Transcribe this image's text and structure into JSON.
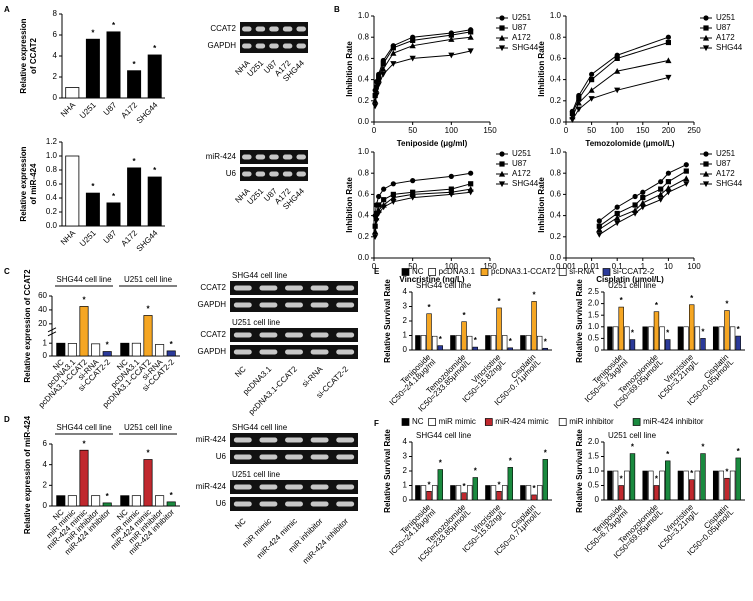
{
  "chart_data": [
    {
      "type": "bar",
      "panel": "A",
      "ylabel": [
        "Relative expression",
        "of CCAT2"
      ],
      "categories": [
        "NHA",
        "U251",
        "U87",
        "A172",
        "SHG44"
      ],
      "values": [
        1,
        5.6,
        6.3,
        2.6,
        4.1
      ],
      "colors": [
        "#ffffff",
        "#000000",
        "#000000",
        "#000000",
        "#000000"
      ],
      "significant": [
        false,
        true,
        true,
        true,
        true
      ],
      "sig_label": "*",
      "ylim": [
        0,
        8
      ],
      "yticks": [
        0,
        2,
        4,
        6,
        8
      ]
    },
    {
      "type": "gel",
      "blocks": [
        {
          "bands": [
            "CCAT2",
            "GAPDH"
          ]
        }
      ],
      "lanes": [
        "NHA",
        "U251",
        "U87",
        "A172",
        "SHG44"
      ]
    },
    {
      "type": "bar",
      "ylabel": [
        "Relative expression",
        "of miR-424"
      ],
      "categories": [
        "NHA",
        "U251",
        "U87",
        "A172",
        "SHG44"
      ],
      "values": [
        1.0,
        0.47,
        0.33,
        0.83,
        0.7
      ],
      "colors": [
        "#ffffff",
        "#000000",
        "#000000",
        "#000000",
        "#000000"
      ],
      "significant": [
        false,
        true,
        true,
        true,
        true
      ],
      "sig_label": "*",
      "ylim": [
        0,
        1.2
      ],
      "yticks": [
        {
          "value": 0,
          "label": "0.0"
        },
        0.2,
        0.4,
        0.6,
        0.8,
        {
          "value": 1,
          "label": "1.0"
        },
        1.2
      ]
    },
    {
      "type": "gel",
      "blocks": [
        {
          "bands": [
            "miR-424",
            "U6"
          ]
        }
      ],
      "lanes": [
        "NHA",
        "U251",
        "U87",
        "A172",
        "SHG44"
      ]
    },
    {
      "type": "line",
      "panel": "B",
      "xlabel": "Teniposide (μg/ml)",
      "ylabel": "Inhibition Rate",
      "x": [
        1.5,
        3,
        6,
        12,
        25,
        50,
        100,
        125
      ],
      "series": [
        {
          "name": "U251",
          "color": "#000000",
          "marker": "circle",
          "values": [
            0.3,
            0.38,
            0.45,
            0.58,
            0.72,
            0.8,
            0.84,
            0.87
          ]
        },
        {
          "name": "U87",
          "color": "#000000",
          "marker": "square",
          "values": [
            0.25,
            0.33,
            0.42,
            0.55,
            0.7,
            0.77,
            0.82,
            0.85
          ]
        },
        {
          "name": "A172",
          "color": "#000000",
          "marker": "triangle",
          "values": [
            0.2,
            0.3,
            0.4,
            0.5,
            0.65,
            0.72,
            0.78,
            0.8
          ]
        },
        {
          "name": "SHG44",
          "color": "#000000",
          "marker": "triangle-down",
          "values": [
            0.15,
            0.25,
            0.35,
            0.45,
            0.55,
            0.6,
            0.63,
            0.67
          ]
        }
      ],
      "xlim": [
        0,
        150
      ],
      "xticks": [
        0,
        50,
        100,
        150
      ],
      "ylim": [
        0,
        1
      ],
      "yticks": [
        {
          "value": 0,
          "label": "0.0"
        },
        0.2,
        0.4,
        0.6,
        0.8,
        {
          "value": 1,
          "label": "1.0"
        }
      ]
    },
    {
      "type": "line",
      "xlabel": "Temozolomide (μmol/L)",
      "ylabel": "Inhibition Rate",
      "x": [
        12.5,
        25,
        50,
        100,
        200
      ],
      "series": [
        {
          "name": "U251",
          "color": "#000000",
          "marker": "circle",
          "values": [
            0.1,
            0.25,
            0.45,
            0.63,
            0.8
          ]
        },
        {
          "name": "U87",
          "color": "#000000",
          "marker": "square",
          "values": [
            0.08,
            0.22,
            0.4,
            0.6,
            0.75
          ]
        },
        {
          "name": "A172",
          "color": "#000000",
          "marker": "triangle",
          "values": [
            0.05,
            0.18,
            0.3,
            0.48,
            0.58
          ]
        },
        {
          "name": "SHG44",
          "color": "#000000",
          "marker": "triangle-down",
          "values": [
            0.02,
            0.12,
            0.22,
            0.3,
            0.42
          ]
        }
      ],
      "xlim": [
        0,
        250
      ],
      "xticks": [
        0,
        50,
        100,
        150,
        200,
        250
      ],
      "ylim": [
        0,
        1
      ],
      "yticks": [
        {
          "value": 0,
          "label": "0.0"
        },
        0.2,
        0.4,
        0.6,
        0.8,
        {
          "value": 1,
          "label": "1.0"
        }
      ]
    },
    {
      "type": "line",
      "xlabel": "Vincristine (ng/L)",
      "ylabel": "Inhibition Rate",
      "x": [
        1.5,
        3,
        6,
        12.5,
        25,
        50,
        100,
        125
      ],
      "series": [
        {
          "name": "U251",
          "color": "#000000",
          "marker": "circle",
          "values": [
            0.4,
            0.5,
            0.58,
            0.65,
            0.7,
            0.73,
            0.77,
            0.8
          ]
        },
        {
          "name": "U87",
          "color": "#000000",
          "marker": "square",
          "values": [
            0.3,
            0.42,
            0.5,
            0.55,
            0.6,
            0.62,
            0.65,
            0.7
          ]
        },
        {
          "name": "A172",
          "color": "#000000",
          "marker": "triangle",
          "values": [
            0.25,
            0.38,
            0.45,
            0.5,
            0.57,
            0.6,
            0.62,
            0.65
          ]
        },
        {
          "name": "SHG44",
          "color": "#000000",
          "marker": "triangle-down",
          "values": [
            0.2,
            0.35,
            0.42,
            0.48,
            0.53,
            0.57,
            0.6,
            0.62
          ]
        }
      ],
      "xlim": [
        0,
        150
      ],
      "xticks": [
        0,
        50,
        100,
        150
      ],
      "ylim": [
        0,
        1
      ],
      "yticks": [
        {
          "value": 0,
          "label": "0.0"
        },
        0.2,
        0.4,
        0.6,
        0.8,
        {
          "value": 1,
          "label": "1.0"
        }
      ]
    },
    {
      "type": "line",
      "xlabel": "Cisplatin (μmol/L)",
      "ylabel": "Inhibition Rate",
      "xlog": true,
      "x": [
        0.02,
        0.1,
        0.5,
        1,
        5,
        10,
        50
      ],
      "series": [
        {
          "name": "U251",
          "color": "#000000",
          "marker": "circle",
          "values": [
            0.35,
            0.48,
            0.58,
            0.62,
            0.72,
            0.8,
            0.88
          ]
        },
        {
          "name": "U87",
          "color": "#000000",
          "marker": "square",
          "values": [
            0.3,
            0.42,
            0.5,
            0.57,
            0.65,
            0.72,
            0.82
          ]
        },
        {
          "name": "A172",
          "color": "#000000",
          "marker": "triangle",
          "values": [
            0.27,
            0.38,
            0.45,
            0.52,
            0.6,
            0.66,
            0.75
          ]
        },
        {
          "name": "SHG44",
          "color": "#000000",
          "marker": "triangle-down",
          "values": [
            0.22,
            0.33,
            0.42,
            0.48,
            0.55,
            0.62,
            0.7
          ]
        }
      ],
      "xlim": [
        0.001,
        100
      ],
      "xticks": [
        0.001,
        0.01,
        0.1,
        1,
        10,
        100
      ],
      "ylim": [
        0,
        1
      ],
      "yticks": [
        {
          "value": 0,
          "label": "0.0"
        },
        0.2,
        0.4,
        0.6,
        0.8,
        {
          "value": 1,
          "label": "1.0"
        }
      ]
    },
    {
      "type": "grouped_bar",
      "panel": "C",
      "ylabel": "Relative expression of CCAT2",
      "categories": [
        "NC",
        "pcDNA3.1",
        "pcDNA3.1-CCAT2",
        "si-RNA",
        "si-CCAT2-2"
      ],
      "colors": [
        "#000000",
        "#ffffff",
        "#f5a623",
        "#ffffff",
        "#2b3a9a"
      ],
      "groups": [
        {
          "name": "SHG44 cell line",
          "values": [
            1,
            0.98,
            45,
            0.95,
            0.35
          ],
          "significant": [
            false,
            false,
            true,
            false,
            true
          ]
        },
        {
          "name": "U251 cell line",
          "values": [
            1,
            1,
            32,
            0.9,
            0.4
          ],
          "significant": [
            false,
            false,
            true,
            false,
            true
          ]
        }
      ],
      "sig_label": "*",
      "ylim": [
        0,
        60
      ],
      "yticks": [
        0,
        1,
        20,
        40,
        60
      ],
      "y_break": [
        1.5,
        10
      ]
    },
    {
      "type": "gel",
      "blocks": [
        {
          "title": "SHG44 cell line",
          "bands": [
            "CCAT2",
            "GAPDH"
          ]
        },
        {
          "title": "U251 cell line",
          "bands": [
            "CCAT2",
            "GAPDH"
          ]
        }
      ],
      "lanes": [
        "NC",
        "pcDNA3.1",
        "pcDNA3.1-CCAT2",
        "si-RNA",
        "si-CCAT2-2"
      ]
    },
    {
      "type": "grouped_bar",
      "panel": "D",
      "ylabel": "Relative expression of miR-424",
      "categories": [
        "NC",
        "miR mimic",
        "miR-424 mimic",
        "miR inhibitor",
        "miR-424 inhibitor"
      ],
      "colors": [
        "#000000",
        "#ffffff",
        "#c0282e",
        "#ffffff",
        "#1a8a3f"
      ],
      "groups": [
        {
          "name": "SHG44 cell line",
          "values": [
            1,
            1,
            5.4,
            1,
            0.3
          ],
          "significant": [
            false,
            false,
            true,
            false,
            true
          ]
        },
        {
          "name": "U251 cell line",
          "values": [
            1,
            1,
            4.5,
            1,
            0.4
          ],
          "significant": [
            false,
            false,
            true,
            false,
            true
          ]
        }
      ],
      "sig_label": "*",
      "ylim": [
        0,
        6
      ],
      "yticks": [
        0,
        2,
        4,
        6
      ]
    },
    {
      "type": "gel",
      "blocks": [
        {
          "title": "SHG44 cell line",
          "bands": [
            "miR-424",
            "U6"
          ]
        },
        {
          "title": "U251 cell line",
          "bands": [
            "miR-424",
            "U6"
          ]
        }
      ],
      "lanes": [
        "NC",
        "miR mimic",
        "miR-424 mimic",
        "miR inhibitor",
        "miR-424 inhibitor"
      ]
    },
    {
      "type": "multi_bar",
      "panel": "E",
      "ylabel": "Relative Survival Rate",
      "sig_label": "*",
      "series": [
        {
          "name": "NC",
          "color": "#000000",
          "significant": false
        },
        {
          "name": "pcDNA3.1",
          "color": "#ffffff",
          "significant": false
        },
        {
          "name": "pcDNA3.1-CCAT2",
          "color": "#f5a623",
          "significant": true
        },
        {
          "name": "si-RNA",
          "color": "#ffffff",
          "significant": false
        },
        {
          "name": "si-CCAT2-2",
          "color": "#2b3a9a",
          "significant": true
        }
      ],
      "subplots": [
        {
          "title": "SHG44 cell line",
          "categories": [
            [
              "Teniposide",
              "IC50=24.18μg/ml"
            ],
            [
              "Temozolomide",
              "IC50=233.85μmol/L"
            ],
            [
              "Vincristine",
              "IC50=15.82ng/L"
            ],
            [
              "Cisplatin",
              "IC50=0.71μmol/L"
            ]
          ],
          "values": [
            [
              1,
              1,
              1,
              1
            ],
            [
              1,
              1,
              1,
              1
            ],
            [
              2.5,
              1.95,
              2.9,
              3.35
            ],
            [
              0.95,
              0.95,
              1,
              0.95
            ],
            [
              0.3,
              0.2,
              0.15,
              0.12
            ]
          ],
          "ylim": [
            0,
            4
          ],
          "yticks": [
            0,
            1,
            2,
            3,
            4
          ]
        },
        {
          "title": "U251 cell line",
          "categories": [
            [
              "Teniposide",
              "IC50=6.73μg/ml"
            ],
            [
              "Temozolomide",
              "IC50=69.05μmol/L"
            ],
            [
              "Vincristine",
              "IC50=3.21ng/L"
            ],
            [
              "Cisplatin",
              "IC50=0.05μmol/L"
            ]
          ],
          "values": [
            [
              1,
              1,
              1,
              1
            ],
            [
              1,
              1,
              1,
              1
            ],
            [
              1.85,
              1.65,
              1.95,
              1.7
            ],
            [
              1,
              1,
              1,
              1
            ],
            [
              0.45,
              0.45,
              0.5,
              0.6
            ]
          ],
          "ylim": [
            0,
            2.5
          ],
          "yticks": [
            0,
            0.5,
            {
              "value": 1,
              "label": "1.0"
            },
            1.5,
            {
              "value": 2,
              "label": "2.0"
            },
            2.5
          ]
        }
      ]
    },
    {
      "type": "multi_bar",
      "panel": "F",
      "ylabel": "Relative Survival Rate",
      "sig_label": "*",
      "series": [
        {
          "name": "NC",
          "color": "#000000",
          "significant": false
        },
        {
          "name": "miR mimic",
          "color": "#ffffff",
          "significant": false
        },
        {
          "name": "miR-424 mimic",
          "color": "#c0282e",
          "significant": true
        },
        {
          "name": "miR inhibitor",
          "color": "#ffffff",
          "significant": false
        },
        {
          "name": "miR-424 inhibitor",
          "color": "#1a8a3f",
          "significant": true
        }
      ],
      "subplots": [
        {
          "title": "SHG44 cell line",
          "categories": [
            [
              "Teniposide",
              "IC50=24.18μg/ml"
            ],
            [
              "Temozolomide",
              "IC50=233.85μmol/L"
            ],
            [
              "Vincristine",
              "IC50=15.82ng/L"
            ],
            [
              "Cisplatin",
              "IC50=0.71μmol/L"
            ]
          ],
          "values": [
            [
              1,
              1,
              1,
              1
            ],
            [
              1,
              1,
              1,
              1
            ],
            [
              0.6,
              0.5,
              0.6,
              0.35
            ],
            [
              1,
              1,
              1,
              1
            ],
            [
              2.1,
              1.55,
              2.25,
              2.8
            ]
          ],
          "ylim": [
            0,
            4
          ],
          "yticks": [
            0,
            1,
            2,
            3,
            4
          ]
        },
        {
          "title": "U251 cell line",
          "categories": [
            [
              "Teniposide",
              "IC50=6.73μg/ml"
            ],
            [
              "Temozolomide",
              "IC50=69.05μmol/L"
            ],
            [
              "Vincristine",
              "IC50=3.21ng/L"
            ],
            [
              "Cisplatin",
              "IC50=0.05μmol/L"
            ]
          ],
          "values": [
            [
              1,
              1,
              1,
              1
            ],
            [
              1,
              1,
              1,
              1
            ],
            [
              0.5,
              0.5,
              0.7,
              0.75
            ],
            [
              1,
              1,
              1,
              1
            ],
            [
              1.6,
              1.35,
              1.6,
              1.45
            ]
          ],
          "ylim": [
            0,
            2
          ],
          "yticks": [
            0,
            0.5,
            {
              "value": 1,
              "label": "1.0"
            },
            1.5,
            {
              "value": 2,
              "label": "2.0"
            }
          ]
        }
      ]
    }
  ]
}
